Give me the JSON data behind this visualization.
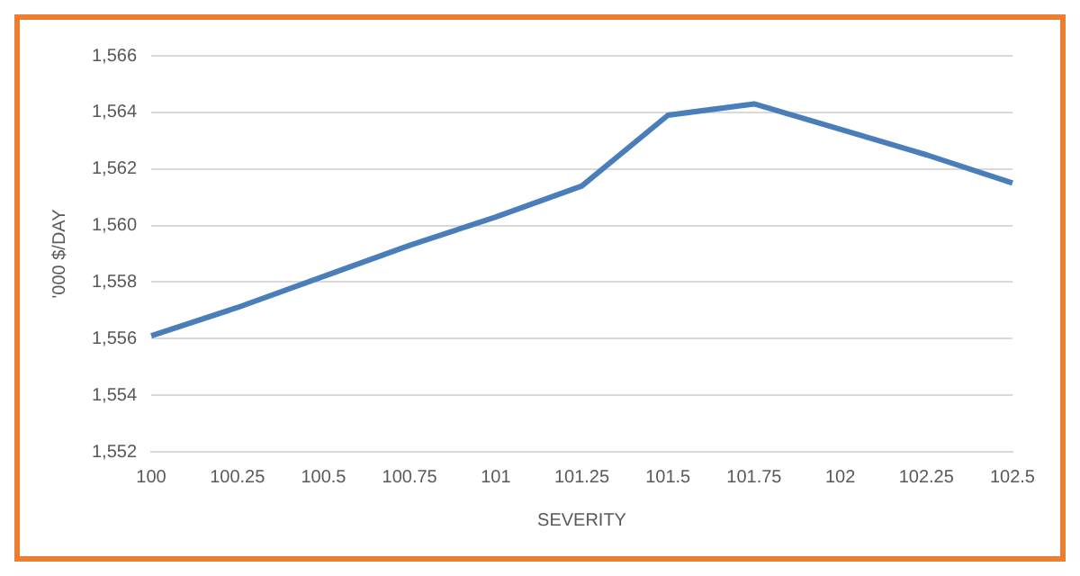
{
  "chart_data": {
    "type": "line",
    "xlabel": "SEVERITY",
    "ylabel": "'000 $/DAY",
    "categories": [
      "100",
      "100.25",
      "100.5",
      "100.75",
      "101",
      "101.25",
      "101.5",
      "101.75",
      "102",
      "102.25",
      "102.5"
    ],
    "series": [
      {
        "color": "#4a7ebb",
        "values": [
          1556.1,
          1557.1,
          1558.2,
          1559.3,
          1560.3,
          1561.4,
          1563.9,
          1564.3,
          1563.4,
          1562.5,
          1561.5
        ]
      }
    ],
    "ylim": [
      1552,
      1566
    ],
    "yticks": [
      {
        "value": 1552,
        "label": "1,552"
      },
      {
        "value": 1554,
        "label": "1,554"
      },
      {
        "value": 1556,
        "label": "1,556"
      },
      {
        "value": 1558,
        "label": "1,558"
      },
      {
        "value": 1560,
        "label": "1,560"
      },
      {
        "value": 1562,
        "label": "1,562"
      },
      {
        "value": 1564,
        "label": "1,564"
      },
      {
        "value": 1566,
        "label": "1,566"
      }
    ],
    "grid": "y",
    "legend": false,
    "marker": "none",
    "line_style": "solid"
  }
}
